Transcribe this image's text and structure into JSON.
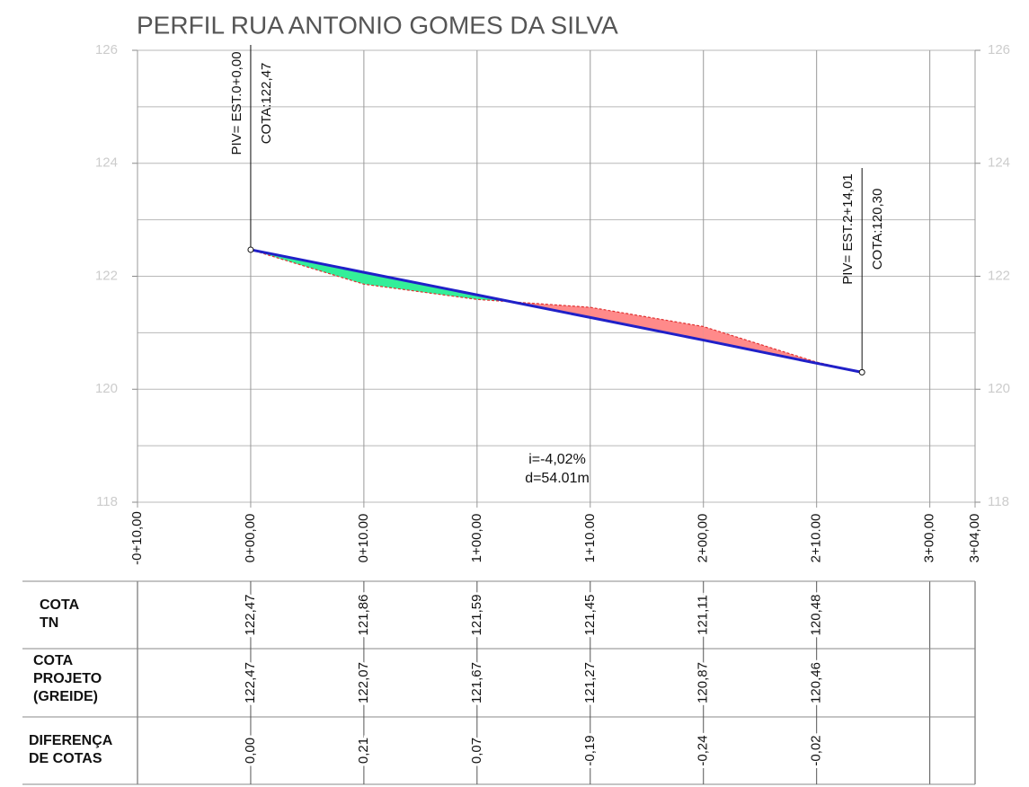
{
  "chart_data": {
    "type": "profile",
    "title": "PERFIL RUA ANTONIO GOMES DA SILVA",
    "xlim": [
      -10,
      64
    ],
    "ylim": [
      118,
      126
    ],
    "yticks": [
      118,
      120,
      122,
      124,
      126
    ],
    "ygrid_minor": [
      119,
      121,
      123,
      125
    ],
    "grid": true,
    "xticks": [
      {
        "value": -10,
        "label": "-0+10,00"
      },
      {
        "value": 0,
        "label": "0+00,00"
      },
      {
        "value": 10,
        "label": "0+10.00"
      },
      {
        "value": 20,
        "label": "1+00,00"
      },
      {
        "value": 30,
        "label": "1+10.00"
      },
      {
        "value": 40,
        "label": "2+00,00"
      },
      {
        "value": 50,
        "label": "2+10.00"
      },
      {
        "value": 60,
        "label": "3+00,00"
      },
      {
        "value": 64,
        "label": "3+04,00"
      }
    ],
    "x": [
      0,
      10,
      20,
      30,
      40,
      50
    ],
    "series": [
      {
        "name": "COTA\nTN",
        "color": "#e03030",
        "values": [
          122.47,
          121.86,
          121.59,
          121.45,
          121.11,
          120.48
        ],
        "value_labels": [
          "122,47",
          "121,86",
          "121,59",
          "121,45",
          "121,11",
          "120,48"
        ]
      },
      {
        "name": "COTA\nPROJETO\n(GREIDE)",
        "color": "#2020c8",
        "values": [
          122.47,
          122.07,
          121.67,
          121.27,
          120.87,
          120.46
        ],
        "value_labels": [
          "122,47",
          "122,07",
          "121,67",
          "121,27",
          "120,87",
          "120,46"
        ]
      },
      {
        "name": "DIFERENÇA\nDE COTAS",
        "colors": [
          "#33ee99",
          "#ff8a8a"
        ],
        "values": [
          0,
          0.21,
          0.07,
          -0.19,
          -0.24,
          -0.02
        ],
        "value_labels": [
          "0,00",
          "0,21",
          "0,07",
          "-0,19",
          "-0,24",
          "-0,02"
        ]
      }
    ],
    "pivs": [
      {
        "x": 0,
        "value": 122.47,
        "label": "PIV= EST.0+0,00",
        "cota_label": "COTA:122,47"
      },
      {
        "x": 54.01,
        "value": 120.3,
        "label": "PIV= EST.2+14,01",
        "cota_label": "COTA:120,30"
      }
    ],
    "annotations": [
      "i=-4,02%",
      "d=54.01m"
    ]
  }
}
